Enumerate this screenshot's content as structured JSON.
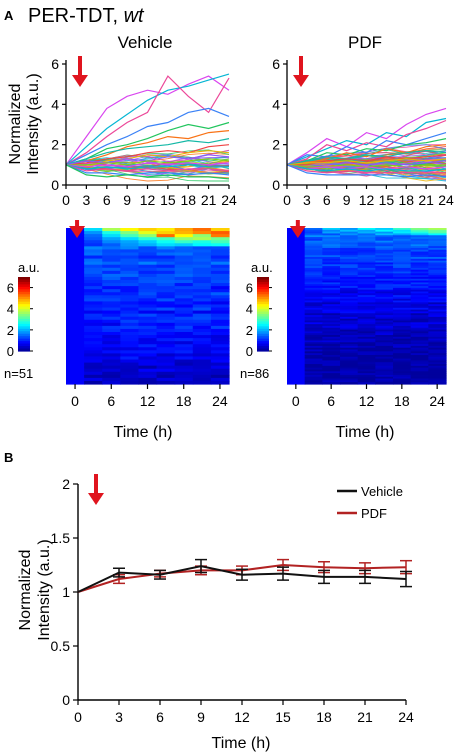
{
  "panel_a": {
    "label": "A",
    "title": "PER-TDT, ",
    "title_italic": "wt",
    "line_ylabel_line1": "Normalized",
    "line_ylabel_line2": "Intensity (a.u.)",
    "xlabel": "Time (h)",
    "colorbar_unit": "a.u.",
    "colorbar_ticks": [
      "0",
      "2",
      "4",
      "6"
    ],
    "conditions": [
      {
        "name": "Vehicle",
        "n_label": "n=51"
      },
      {
        "name": "PDF",
        "n_label": "n=86"
      }
    ],
    "line_x_ticks": [
      "0",
      "3",
      "6",
      "9",
      "12",
      "15",
      "18",
      "21",
      "24"
    ],
    "line_y_ticks": [
      "0",
      "2",
      "4",
      "6"
    ],
    "heat_x_ticks": [
      "0",
      "6",
      "12",
      "18",
      "24"
    ]
  },
  "panel_b": {
    "label": "B",
    "ylabel_line1": "Normalized",
    "ylabel_line2": "Intensity (a.u.)",
    "xlabel": "Time (h)",
    "legend": [
      "Vehicle",
      "PDF"
    ]
  },
  "colors": {
    "vehicle": "#111111",
    "pdf": "#b22222",
    "arrow": "#e0141e"
  },
  "chart_data": [
    {
      "type": "line",
      "title": "Vehicle",
      "xlabel": "",
      "ylabel": "Normalized Intensity (a.u.)",
      "xlim": [
        0,
        24
      ],
      "ylim": [
        0,
        6
      ],
      "x": [
        0,
        3,
        6,
        9,
        12,
        15,
        18,
        21,
        24
      ],
      "n_traces": 51,
      "series": [
        {
          "values": [
            1,
            2.4,
            3.8,
            4.4,
            4.7,
            4.5,
            5.0,
            5.4,
            4.7
          ]
        },
        {
          "values": [
            1,
            1.9,
            2.8,
            3.5,
            4.2,
            4.7,
            4.9,
            5.2,
            5.5
          ]
        },
        {
          "values": [
            1,
            1.6,
            2.4,
            3.1,
            3.6,
            5.4,
            4.4,
            3.6,
            5.3
          ]
        },
        {
          "values": [
            1,
            1.5,
            2.0,
            2.4,
            2.9,
            3.1,
            3.6,
            3.8,
            3.4
          ]
        },
        {
          "values": [
            1,
            1.3,
            1.8,
            2.0,
            2.3,
            2.7,
            3.0,
            2.8,
            3.1
          ]
        },
        {
          "values": [
            1,
            1.2,
            1.5,
            1.9,
            2.1,
            2.4,
            2.3,
            2.6,
            2.7
          ]
        },
        {
          "values": [
            1,
            1.3,
            1.6,
            1.8,
            1.9,
            2.0,
            2.2,
            2.1,
            2.3
          ]
        },
        {
          "values": [
            1,
            1.1,
            1.3,
            1.4,
            1.6,
            1.7,
            1.6,
            1.9,
            2.0
          ]
        },
        {
          "values": [
            1,
            0.9,
            1.2,
            1.3,
            1.5,
            1.4,
            1.6,
            1.7,
            1.6
          ]
        },
        {
          "values": [
            1,
            1.2,
            1.1,
            1.3,
            1.2,
            1.4,
            1.3,
            1.5,
            1.4
          ]
        },
        {
          "values": [
            1,
            1.0,
            1.1,
            1.0,
            1.2,
            1.1,
            1.2,
            1.3,
            1.2
          ]
        },
        {
          "values": [
            1,
            0.9,
            1.0,
            0.9,
            1.1,
            1.0,
            1.1,
            1.0,
            1.1
          ]
        },
        {
          "values": [
            1,
            0.8,
            0.9,
            0.8,
            0.9,
            0.9,
            1.0,
            0.9,
            0.9
          ]
        },
        {
          "values": [
            1,
            0.7,
            0.8,
            0.7,
            0.8,
            0.7,
            0.8,
            0.8,
            0.7
          ]
        },
        {
          "values": [
            1,
            0.6,
            0.6,
            0.5,
            0.6,
            0.6,
            0.5,
            0.6,
            0.5
          ]
        },
        {
          "values": [
            1,
            0.5,
            0.4,
            0.5,
            0.4,
            0.5,
            0.4,
            0.4,
            0.3
          ]
        }
      ]
    },
    {
      "type": "line",
      "title": "PDF",
      "xlabel": "",
      "ylabel": "",
      "xlim": [
        0,
        24
      ],
      "ylim": [
        0,
        6
      ],
      "x": [
        0,
        3,
        6,
        9,
        12,
        15,
        18,
        21,
        24
      ],
      "n_traces": 86,
      "series": [
        {
          "values": [
            1,
            1.6,
            2.3,
            1.9,
            2.6,
            2.3,
            3.0,
            3.5,
            3.8
          ]
        },
        {
          "values": [
            1,
            1.4,
            1.8,
            2.2,
            2.0,
            2.6,
            2.4,
            3.1,
            3.3
          ]
        },
        {
          "values": [
            1,
            1.3,
            2.0,
            1.7,
            2.1,
            1.9,
            2.5,
            2.8,
            3.2
          ]
        },
        {
          "values": [
            1,
            1.5,
            1.4,
            1.9,
            1.6,
            2.2,
            2.0,
            2.3,
            2.6
          ]
        },
        {
          "values": [
            1,
            1.2,
            1.6,
            1.5,
            1.8,
            1.7,
            2.0,
            2.1,
            2.3
          ]
        },
        {
          "values": [
            1,
            1.1,
            1.3,
            1.6,
            1.4,
            1.8,
            1.6,
            1.9,
            2.0
          ]
        },
        {
          "values": [
            1,
            1.2,
            1.4,
            1.3,
            1.5,
            1.4,
            1.6,
            1.7,
            1.6
          ]
        },
        {
          "values": [
            1,
            1.0,
            1.2,
            1.3,
            1.2,
            1.4,
            1.3,
            1.4,
            1.5
          ]
        },
        {
          "values": [
            1,
            1.1,
            1.1,
            1.2,
            1.1,
            1.2,
            1.3,
            1.2,
            1.3
          ]
        },
        {
          "values": [
            1,
            0.9,
            1.0,
            1.1,
            1.0,
            1.1,
            1.0,
            1.1,
            1.2
          ]
        },
        {
          "values": [
            1,
            0.9,
            0.9,
            1.0,
            0.9,
            1.0,
            0.9,
            1.0,
            1.0
          ]
        },
        {
          "values": [
            1,
            0.8,
            0.9,
            0.8,
            0.9,
            0.8,
            0.9,
            0.8,
            0.9
          ]
        },
        {
          "values": [
            1,
            0.8,
            0.7,
            0.8,
            0.7,
            0.8,
            0.7,
            0.7,
            0.8
          ]
        },
        {
          "values": [
            1,
            0.7,
            0.6,
            0.7,
            0.6,
            0.6,
            0.6,
            0.6,
            0.6
          ]
        },
        {
          "values": [
            1,
            0.6,
            0.5,
            0.5,
            0.5,
            0.5,
            0.4,
            0.5,
            0.4
          ]
        }
      ]
    },
    {
      "type": "heatmap",
      "title": "Vehicle",
      "xlabel": "Time (h)",
      "ylabel": "",
      "x": [
        0,
        3,
        6,
        9,
        12,
        15,
        18,
        21,
        24
      ],
      "n_rows": 51,
      "colorbar": {
        "label": "a.u.",
        "range": [
          0,
          7
        ]
      },
      "top_rows": [
        [
          1,
          2.4,
          3.8,
          4.4,
          4.7,
          4.5,
          5.0,
          5.4,
          4.7
        ],
        [
          1,
          1.9,
          2.8,
          3.5,
          4.2,
          4.7,
          4.9,
          5.2,
          5.5
        ],
        [
          1,
          1.6,
          2.4,
          3.1,
          3.6,
          5.4,
          4.4,
          3.6,
          5.3
        ],
        [
          1,
          1.5,
          2.0,
          2.4,
          2.9,
          3.1,
          3.6,
          3.8,
          3.4
        ],
        [
          1,
          1.3,
          1.8,
          2.0,
          2.3,
          2.7,
          3.0,
          2.8,
          3.1
        ],
        [
          1,
          1.2,
          1.5,
          1.9,
          2.1,
          2.4,
          2.3,
          2.6,
          2.7
        ]
      ]
    },
    {
      "type": "heatmap",
      "title": "PDF",
      "xlabel": "Time (h)",
      "ylabel": "",
      "x": [
        0,
        3,
        6,
        9,
        12,
        15,
        18,
        21,
        24
      ],
      "n_rows": 86,
      "colorbar": {
        "label": "a.u.",
        "range": [
          0,
          7
        ]
      },
      "top_rows": [
        [
          1,
          1.6,
          2.3,
          1.9,
          2.6,
          2.3,
          3.0,
          3.5,
          3.8
        ],
        [
          1,
          1.4,
          1.8,
          2.2,
          2.0,
          2.6,
          2.4,
          3.1,
          3.3
        ],
        [
          1,
          1.3,
          2.0,
          1.7,
          2.1,
          1.9,
          2.5,
          2.8,
          3.2
        ],
        [
          1,
          1.5,
          1.4,
          1.9,
          1.6,
          2.2,
          2.0,
          2.3,
          2.6
        ]
      ]
    },
    {
      "type": "line",
      "title": "",
      "xlabel": "Time (h)",
      "ylabel": "Normalized Intensity (a.u.)",
      "xlim": [
        0,
        24
      ],
      "ylim": [
        0,
        2
      ],
      "x": [
        0,
        3,
        6,
        9,
        12,
        15,
        18,
        21,
        24
      ],
      "x_ticks": [
        "0",
        "3",
        "6",
        "9",
        "12",
        "15",
        "18",
        "21",
        "24"
      ],
      "y_ticks": [
        "0",
        "0.5",
        "1",
        "1.5",
        "2"
      ],
      "legend": "top-right",
      "series": [
        {
          "name": "Vehicle",
          "color": "#111111",
          "values": [
            1.0,
            1.18,
            1.16,
            1.24,
            1.16,
            1.17,
            1.14,
            1.14,
            1.12
          ],
          "error": [
            0,
            0.04,
            0.04,
            0.06,
            0.05,
            0.06,
            0.06,
            0.06,
            0.07
          ]
        },
        {
          "name": "PDF",
          "color": "#b22222",
          "values": [
            1.0,
            1.12,
            1.17,
            1.2,
            1.2,
            1.25,
            1.23,
            1.22,
            1.23
          ],
          "error": [
            0,
            0.04,
            0.03,
            0.04,
            0.04,
            0.05,
            0.05,
            0.05,
            0.06
          ]
        }
      ]
    }
  ]
}
